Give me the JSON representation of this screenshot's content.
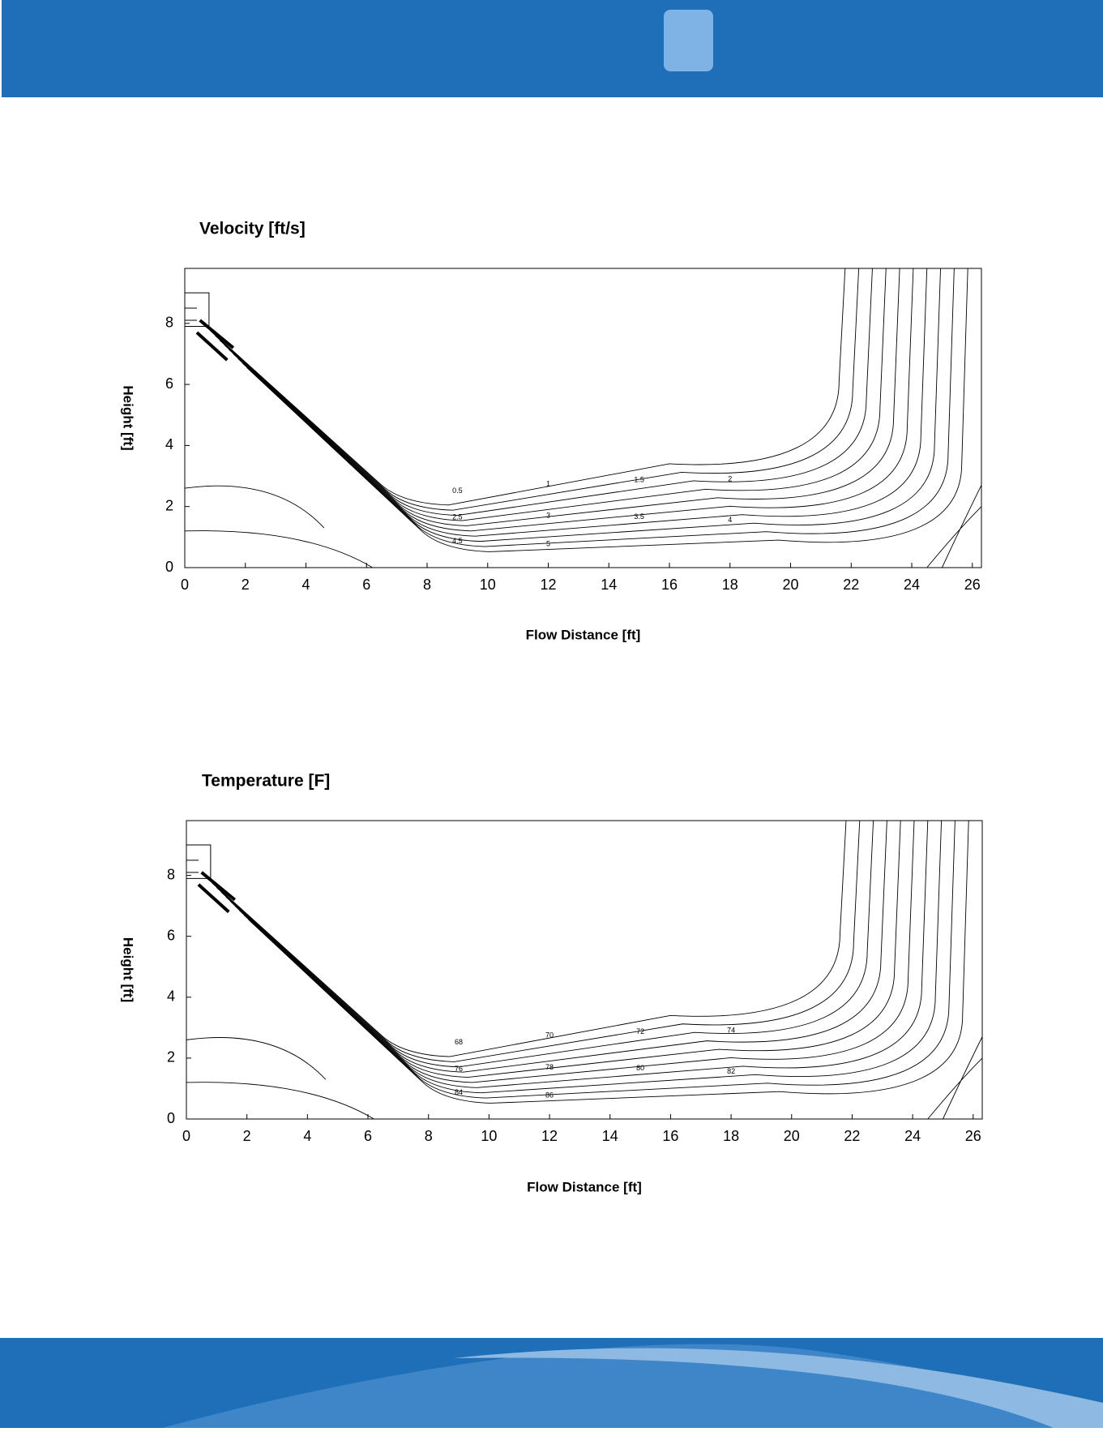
{
  "chart_data": [
    {
      "type": "contour",
      "title": "Velocity [ft/s]",
      "x_label": "Flow Distance [ft]",
      "y_label": "Height [ft]",
      "xlim": [
        0,
        26.3
      ],
      "ylim": [
        0,
        9.8
      ],
      "xticks": [
        0,
        2,
        4,
        6,
        8,
        10,
        12,
        14,
        16,
        18,
        20,
        22,
        24,
        26
      ],
      "yticks": [
        0,
        2,
        4,
        6,
        8
      ],
      "levels": [
        0.5,
        1,
        1.5,
        2,
        2.5,
        3,
        3.5,
        4,
        4.5,
        5
      ]
    },
    {
      "type": "contour",
      "title": "Temperature [F]",
      "x_label": "Flow Distance [ft]",
      "y_label": "Height [ft]",
      "xlim": [
        0,
        26.3
      ],
      "ylim": [
        0,
        9.8
      ],
      "xticks": [
        0,
        2,
        4,
        6,
        8,
        10,
        12,
        14,
        16,
        18,
        20,
        22,
        24,
        26
      ],
      "yticks": [
        0,
        2,
        4,
        6,
        8
      ],
      "levels": [
        68,
        70,
        72,
        74,
        76,
        78,
        80,
        82,
        84,
        86
      ]
    }
  ]
}
